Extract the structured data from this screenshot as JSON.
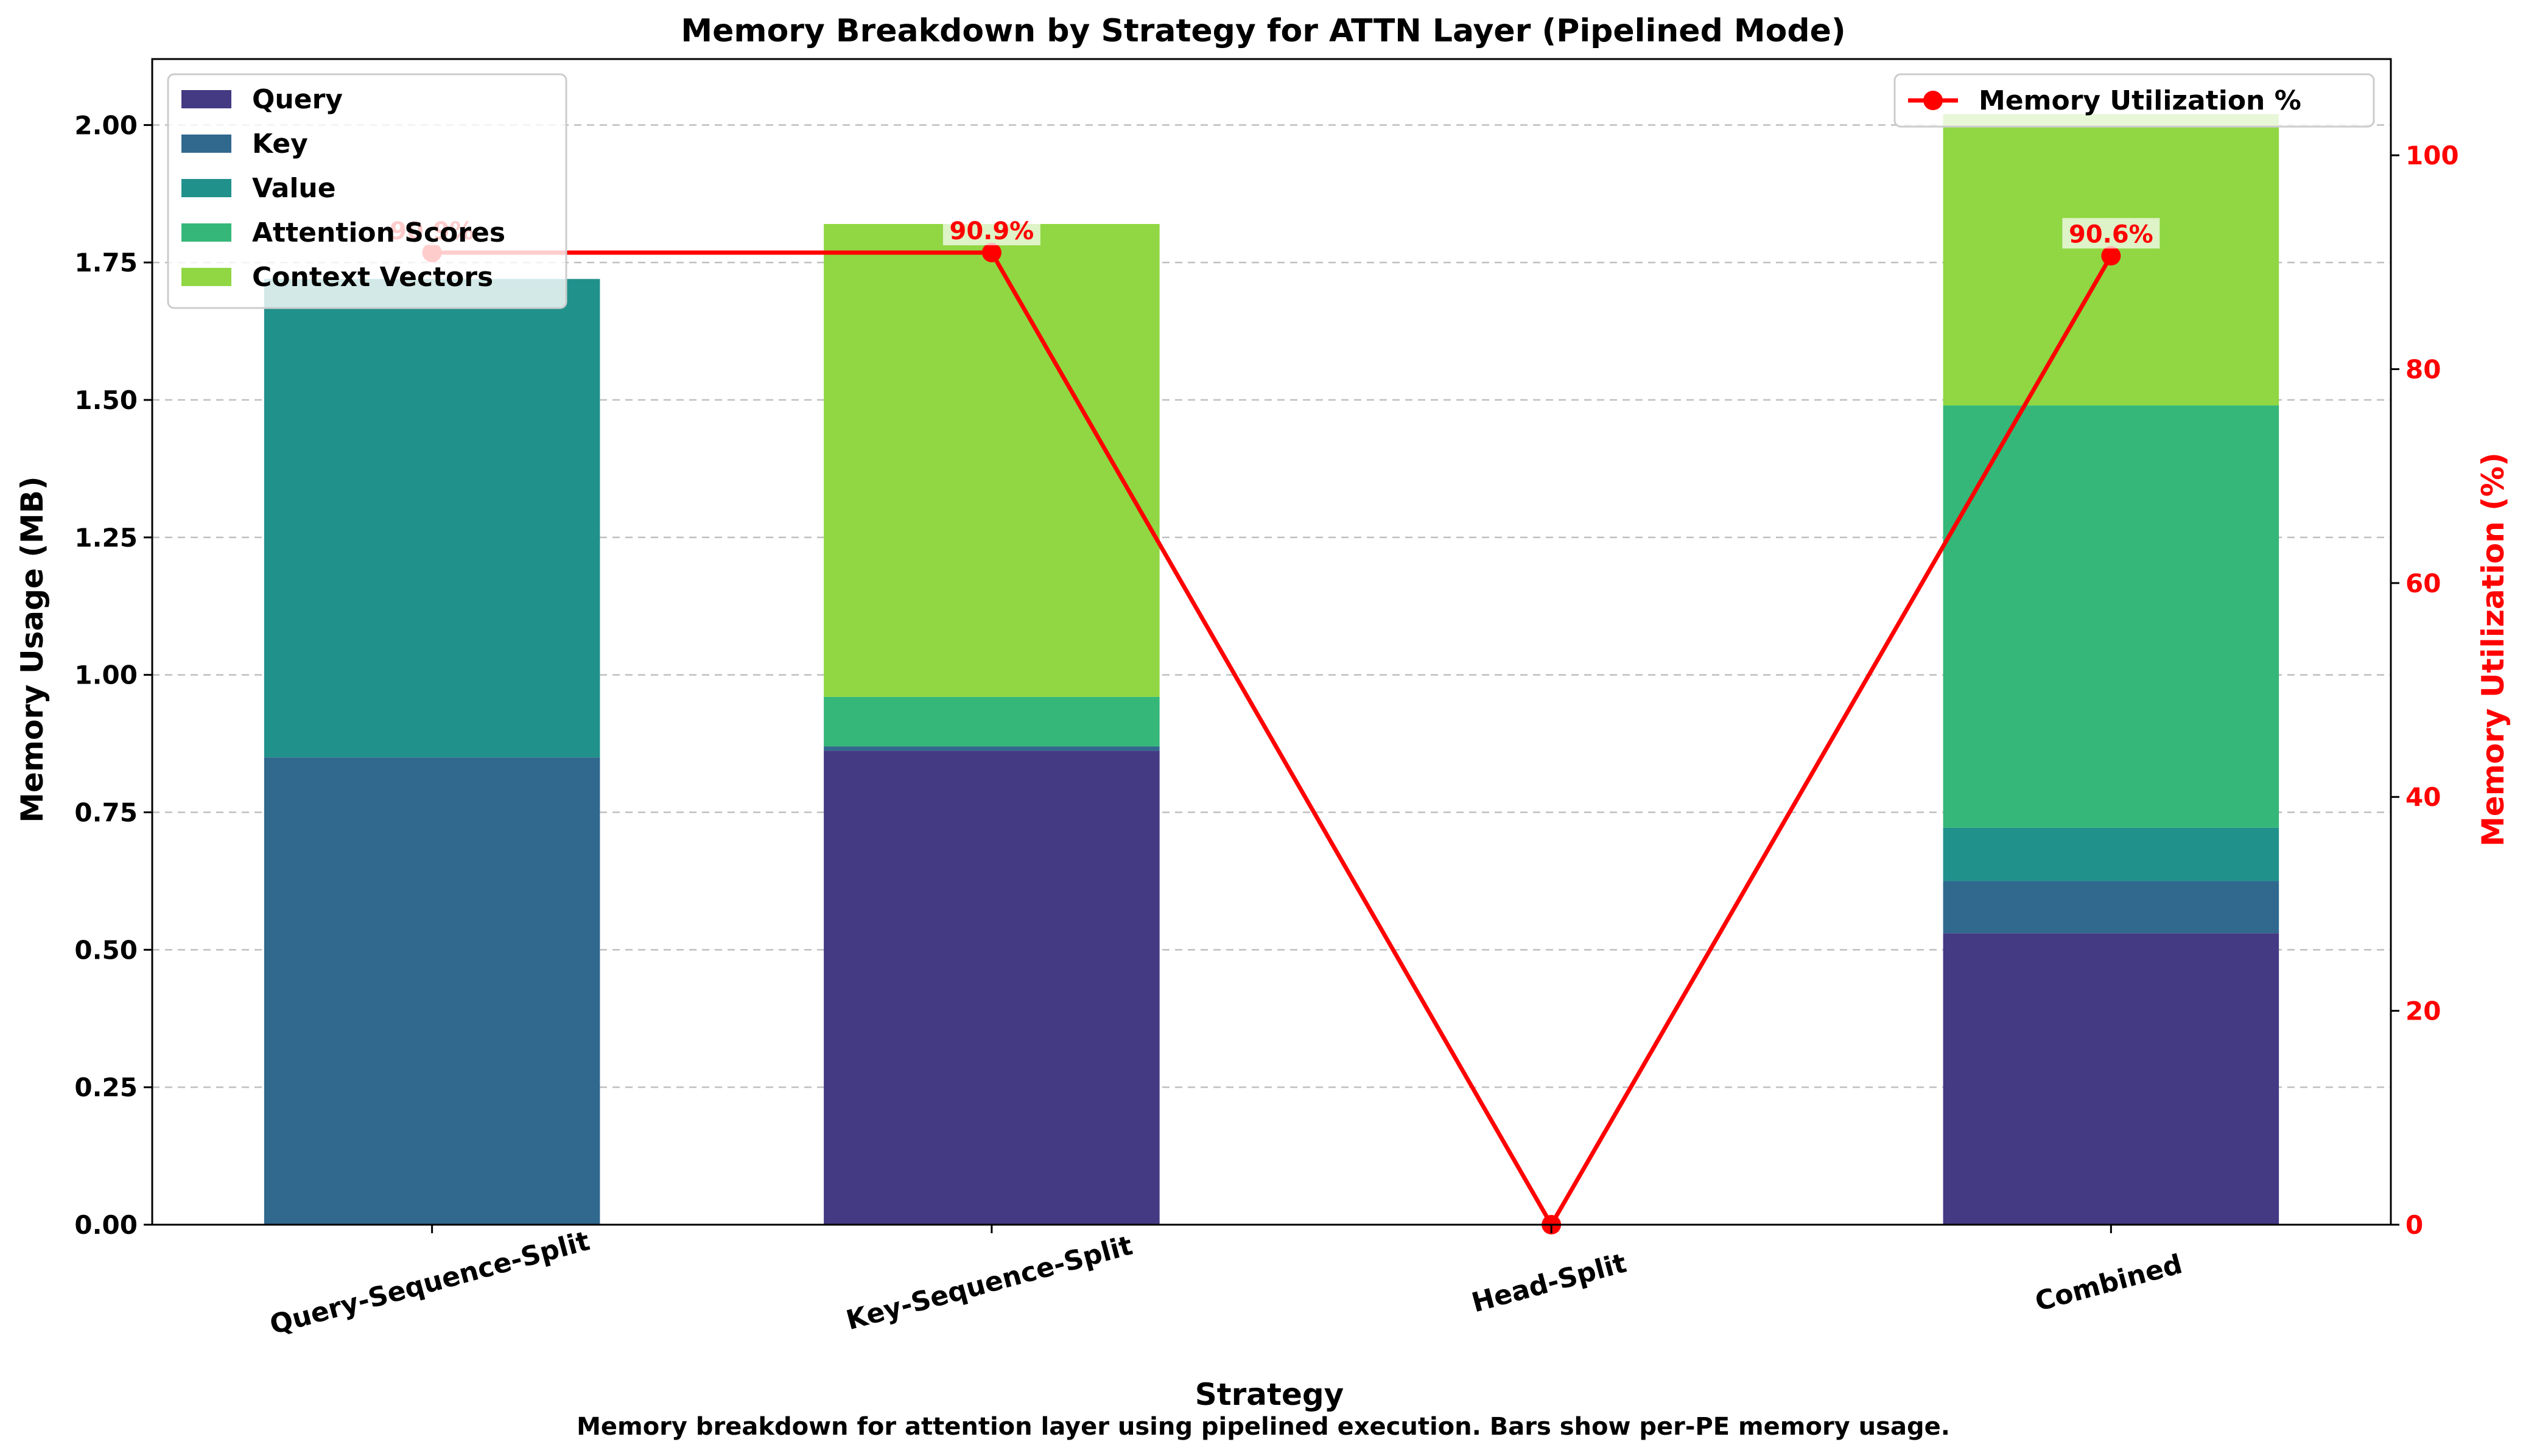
{
  "chart_data": {
    "type": "bar",
    "stacked": true,
    "title": "Memory Breakdown by Strategy for ATTN Layer (Pipelined Mode)",
    "xlabel": "Strategy",
    "ylabel": "Memory Usage (MB)",
    "y2label": "Memory Utilization (%)",
    "caption": "Memory breakdown for attention layer using pipelined execution. Bars show per-PE memory usage.",
    "categories": [
      "Query-Sequence-Split",
      "Key-Sequence-Split",
      "Head-Split",
      "Combined"
    ],
    "ylim": [
      0,
      2.12
    ],
    "y2lim": [
      0,
      109
    ],
    "yticks": [
      "0.00",
      "0.25",
      "0.50",
      "0.75",
      "1.00",
      "1.25",
      "1.50",
      "1.75",
      "2.00"
    ],
    "y2ticks": [
      "0",
      "20",
      "40",
      "60",
      "80",
      "100"
    ],
    "grid": "y-dashed",
    "legend_position": "top-left",
    "legend2_position": "top-right",
    "series": [
      {
        "name": "Query",
        "color": "#443983",
        "values": [
          0.0,
          0.862,
          0.0,
          0.53
        ]
      },
      {
        "name": "Key",
        "color": "#31688e",
        "values": [
          0.85,
          0.008,
          0.0,
          0.095
        ]
      },
      {
        "name": "Value",
        "color": "#21918c",
        "values": [
          0.87,
          0.0,
          0.0,
          0.097
        ]
      },
      {
        "name": "Attention Scores",
        "color": "#35b779",
        "values": [
          0.0,
          0.09,
          0.0,
          0.768
        ]
      },
      {
        "name": "Context Vectors",
        "color": "#90d743",
        "values": [
          0.0,
          0.86,
          0.0,
          0.53
        ]
      }
    ],
    "line_series": {
      "name": "Memory Utilization %",
      "color": "#ff0000",
      "values": [
        90.9,
        90.9,
        0.0,
        90.6
      ],
      "labels": [
        "90.9%",
        "90.9%",
        "",
        "90.6%"
      ]
    }
  }
}
